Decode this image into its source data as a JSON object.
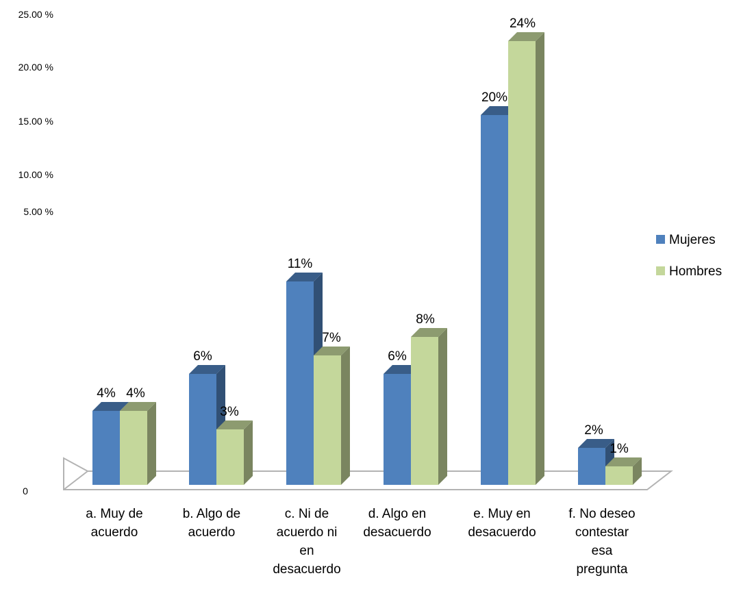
{
  "chart_data": {
    "type": "bar",
    "categories": [
      [
        "a. Muy de",
        "acuerdo"
      ],
      [
        "b. Algo de",
        "acuerdo"
      ],
      [
        "c. Ni de",
        "acuerdo ni",
        "en",
        "desacuerdo"
      ],
      [
        "d. Algo en",
        "desacuerdo"
      ],
      [
        "e. Muy en",
        "desacuerdo"
      ],
      [
        "f. No deseo",
        "contestar",
        "esa",
        "pregunta"
      ]
    ],
    "series": [
      {
        "name": "Mujeres",
        "values": [
          4,
          6,
          11,
          6,
          20,
          2
        ],
        "labels": [
          "4%",
          "6%",
          "11%",
          "6%",
          "20%",
          "2%"
        ]
      },
      {
        "name": "Hombres",
        "values": [
          4,
          3,
          7,
          8,
          24,
          1
        ],
        "labels": [
          "4%",
          "3%",
          "7%",
          "8%",
          "24%",
          "1%"
        ]
      }
    ],
    "yticks": [
      "0",
      "5.00 %",
      "10.00 %",
      "15.00 %",
      "20.00 %",
      "25.00 %"
    ],
    "legend_position": "right",
    "gridlines": false,
    "colors": {
      "Mujeres": "#4f81bd",
      "Hombres": "#c4d79b"
    }
  }
}
